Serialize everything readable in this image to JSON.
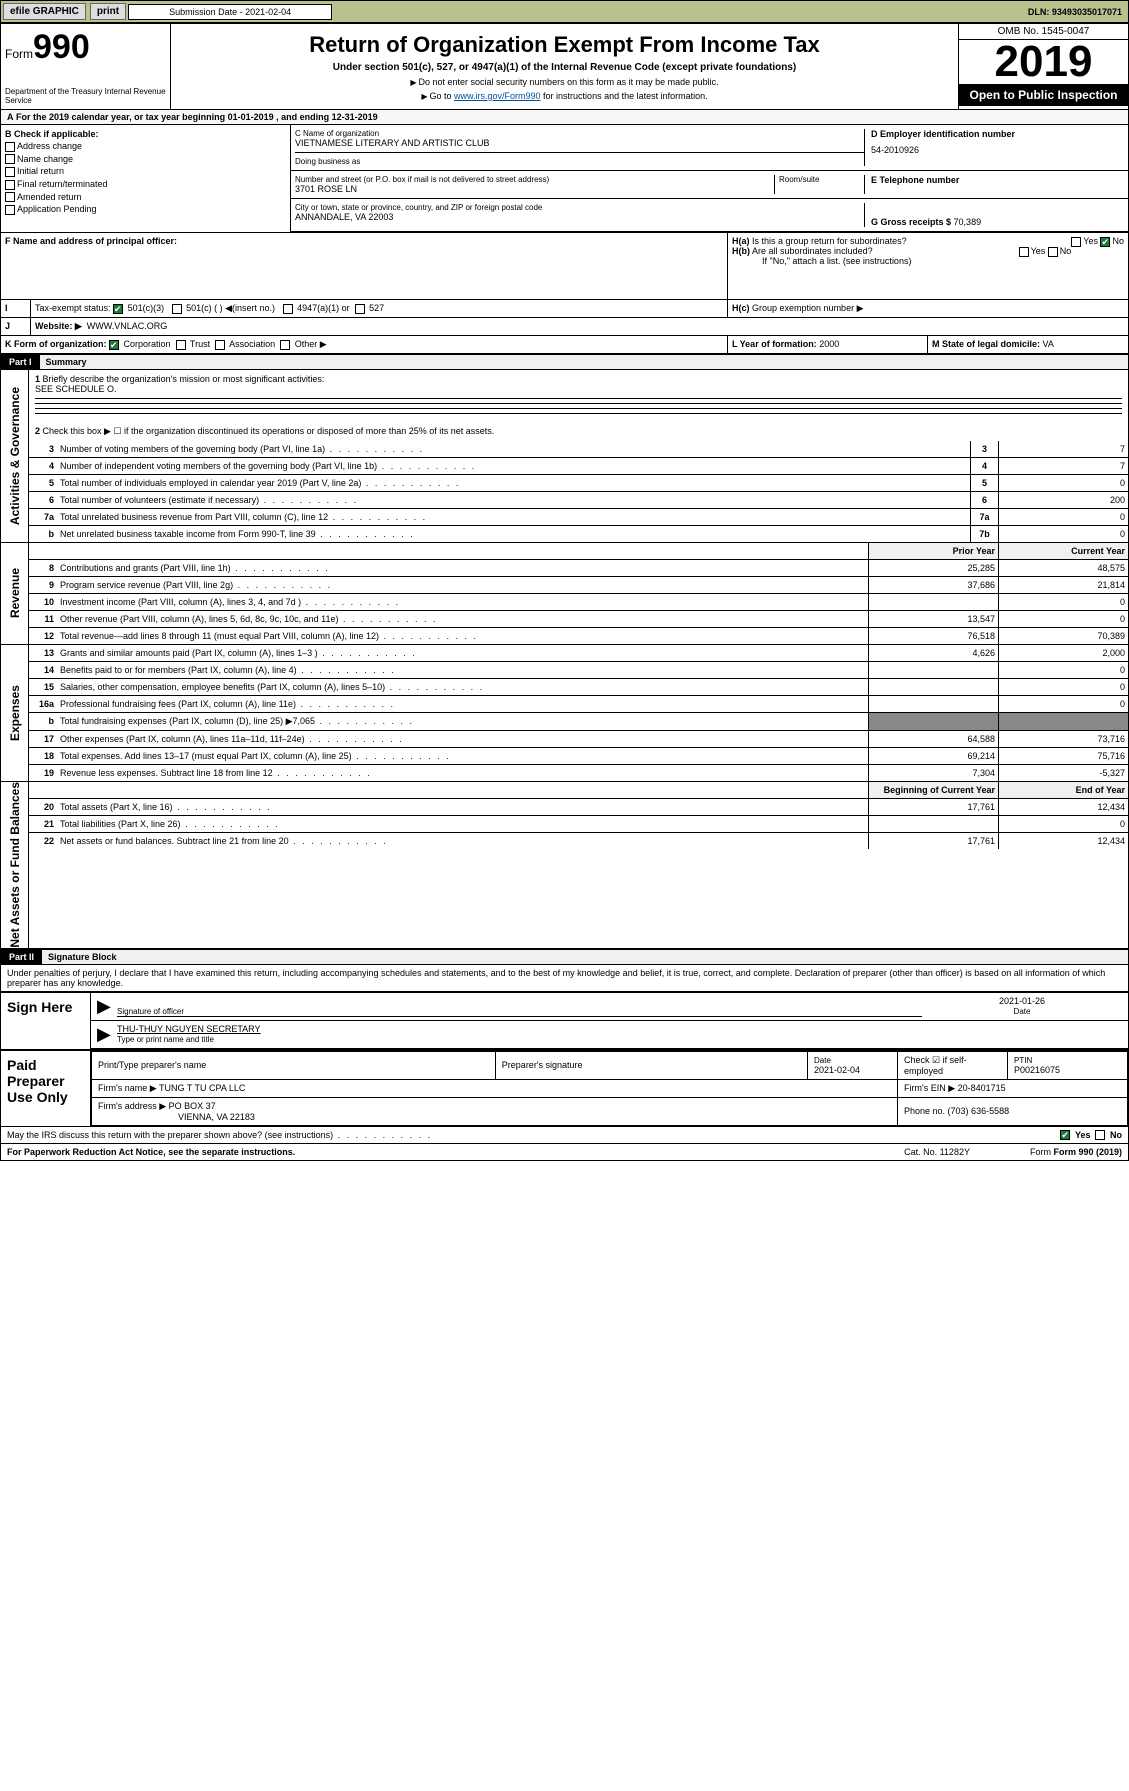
{
  "topbar": {
    "efile": "efile GRAPHIC",
    "print": "print",
    "sub_label": "Submission Date - 2021-02-04",
    "dln": "DLN: 93493035017071"
  },
  "header": {
    "form_prefix": "Form",
    "form_no": "990",
    "dept": "Department of the Treasury\nInternal Revenue Service",
    "title": "Return of Organization Exempt From Income Tax",
    "sub1": "Under section 501(c), 527, or 4947(a)(1) of the Internal Revenue Code (except private foundations)",
    "sub2": "Do not enter social security numbers on this form as it may be made public.",
    "sub3_pre": "Go to ",
    "sub3_link": "www.irs.gov/Form990",
    "sub3_post": " for instructions and the latest information.",
    "omb": "OMB No. 1545-0047",
    "year": "2019",
    "inspect": "Open to Public Inspection"
  },
  "line_a": "For the 2019 calendar year, or tax year beginning 01-01-2019  , and ending 12-31-2019",
  "boxB": {
    "label": "B Check if applicable:",
    "opts": [
      "Address change",
      "Name change",
      "Initial return",
      "Final return/terminated",
      "Amended return",
      "Application Pending"
    ]
  },
  "boxC": {
    "label": "C Name of organization",
    "val": "VIETNAMESE LITERARY AND ARTISTIC CLUB",
    "dba": "Doing business as"
  },
  "boxD": {
    "label": "D Employer identification number",
    "val": "54-2010926"
  },
  "addr": {
    "label": "Number and street (or P.O. box if mail is not delivered to street address)",
    "room": "Room/suite",
    "val": "3701 ROSE LN"
  },
  "city": {
    "label": "City or town, state or province, country, and ZIP or foreign postal code",
    "val": "ANNANDALE, VA  22003"
  },
  "boxE": {
    "label": "E Telephone number",
    "val": ""
  },
  "boxG": {
    "label": "G Gross receipts $ ",
    "val": "70,389"
  },
  "boxF": {
    "label": "F  Name and address of principal officer:"
  },
  "boxH": {
    "a": "Is this a group return for subordinates?",
    "b": "Are all subordinates included?",
    "b_note": "If \"No,\" attach a list. (see instructions)",
    "c": "Group exemption number ▶",
    "yes": "Yes",
    "no": "No"
  },
  "boxI": {
    "label": "Tax-exempt status:",
    "a": "501(c)(3)",
    "b": "501(c) (  ) ◀(insert no.)",
    "c": "4947(a)(1) or",
    "d": "527"
  },
  "boxJ": {
    "label": "Website: ▶",
    "val": "WWW.VNLAC.ORG"
  },
  "boxK": {
    "label": "K Form of organization:",
    "opts": [
      "Corporation",
      "Trust",
      "Association",
      "Other ▶"
    ]
  },
  "boxL": {
    "label": "L Year of formation: ",
    "val": "2000"
  },
  "boxM": {
    "label": "M State of legal domicile: ",
    "val": "VA"
  },
  "partI": {
    "num": "Part I",
    "title": "Summary"
  },
  "gov": {
    "label": "Activities & Governance",
    "l1": "Briefly describe the organization's mission or most significant activities:",
    "l1v": "SEE SCHEDULE O.",
    "l2": "Check this box ▶ ☐  if the organization discontinued its operations or disposed of more than 25% of its net assets.",
    "rows": [
      {
        "n": "3",
        "d": "Number of voting members of the governing body (Part VI, line 1a)",
        "b": "3",
        "v": "7"
      },
      {
        "n": "4",
        "d": "Number of independent voting members of the governing body (Part VI, line 1b)",
        "b": "4",
        "v": "7"
      },
      {
        "n": "5",
        "d": "Total number of individuals employed in calendar year 2019 (Part V, line 2a)",
        "b": "5",
        "v": "0"
      },
      {
        "n": "6",
        "d": "Total number of volunteers (estimate if necessary)",
        "b": "6",
        "v": "200"
      },
      {
        "n": "7a",
        "d": "Total unrelated business revenue from Part VIII, column (C), line 12",
        "b": "7a",
        "v": "0"
      },
      {
        "n": "b",
        "d": "Net unrelated business taxable income from Form 990-T, line 39",
        "b": "7b",
        "v": "0"
      }
    ]
  },
  "rev": {
    "label": "Revenue",
    "h1": "Prior Year",
    "h2": "Current Year",
    "rows": [
      {
        "n": "8",
        "d": "Contributions and grants (Part VIII, line 1h)",
        "p": "25,285",
        "c": "48,575"
      },
      {
        "n": "9",
        "d": "Program service revenue (Part VIII, line 2g)",
        "p": "37,686",
        "c": "21,814"
      },
      {
        "n": "10",
        "d": "Investment income (Part VIII, column (A), lines 3, 4, and 7d )",
        "p": "",
        "c": "0"
      },
      {
        "n": "11",
        "d": "Other revenue (Part VIII, column (A), lines 5, 6d, 8c, 9c, 10c, and 11e)",
        "p": "13,547",
        "c": "0"
      },
      {
        "n": "12",
        "d": "Total revenue—add lines 8 through 11 (must equal Part VIII, column (A), line 12)",
        "p": "76,518",
        "c": "70,389"
      }
    ]
  },
  "exp": {
    "label": "Expenses",
    "rows": [
      {
        "n": "13",
        "d": "Grants and similar amounts paid (Part IX, column (A), lines 1–3 )",
        "p": "4,626",
        "c": "2,000"
      },
      {
        "n": "14",
        "d": "Benefits paid to or for members (Part IX, column (A), line 4)",
        "p": "",
        "c": "0"
      },
      {
        "n": "15",
        "d": "Salaries, other compensation, employee benefits (Part IX, column (A), lines 5–10)",
        "p": "",
        "c": "0"
      },
      {
        "n": "16a",
        "d": "Professional fundraising fees (Part IX, column (A), line 11e)",
        "p": "",
        "c": "0"
      },
      {
        "n": "b",
        "d": "Total fundraising expenses (Part IX, column (D), line 25) ▶7,065",
        "p": "shade",
        "c": "shade"
      },
      {
        "n": "17",
        "d": "Other expenses (Part IX, column (A), lines 11a–11d, 11f–24e)",
        "p": "64,588",
        "c": "73,716"
      },
      {
        "n": "18",
        "d": "Total expenses. Add lines 13–17 (must equal Part IX, column (A), line 25)",
        "p": "69,214",
        "c": "75,716"
      },
      {
        "n": "19",
        "d": "Revenue less expenses. Subtract line 18 from line 12",
        "p": "7,304",
        "c": "-5,327"
      }
    ]
  },
  "net": {
    "label": "Net Assets or Fund Balances",
    "h1": "Beginning of Current Year",
    "h2": "End of Year",
    "rows": [
      {
        "n": "20",
        "d": "Total assets (Part X, line 16)",
        "p": "17,761",
        "c": "12,434"
      },
      {
        "n": "21",
        "d": "Total liabilities (Part X, line 26)",
        "p": "",
        "c": "0"
      },
      {
        "n": "22",
        "d": "Net assets or fund balances. Subtract line 21 from line 20",
        "p": "17,761",
        "c": "12,434"
      }
    ]
  },
  "partII": {
    "num": "Part II",
    "title": "Signature Block"
  },
  "jurat": "Under penalties of perjury, I declare that I have examined this return, including accompanying schedules and statements, and to the best of my knowledge and belief, it is true, correct, and complete. Declaration of preparer (other than officer) is based on all information of which preparer has any knowledge.",
  "sign": {
    "here": "Sign Here",
    "sig_of": "Signature of officer",
    "date": "2021-01-26",
    "date_l": "Date",
    "name": "THU-THUY NGUYEN  SECRETARY",
    "name_l": "Type or print name and title"
  },
  "paid": {
    "here": "Paid Preparer Use Only",
    "h": [
      "Print/Type preparer's name",
      "Preparer's signature",
      "Date",
      "",
      "PTIN"
    ],
    "date": "2021-02-04",
    "chk": "Check ☑ if self-employed",
    "ptin": "P00216075",
    "firm_l": "Firm's name    ▶ ",
    "firm": "TUNG T TU CPA LLC",
    "ein_l": "Firm's EIN ▶ ",
    "ein": "20-8401715",
    "addr_l": "Firm's address ▶ ",
    "addr": "PO BOX 37",
    "addr2": "VIENNA, VA  22183",
    "phone_l": "Phone no. ",
    "phone": "(703) 636-5588"
  },
  "discuss": "May the IRS discuss this return with the preparer shown above? (see instructions)",
  "footer": {
    "pra": "For Paperwork Reduction Act Notice, see the separate instructions.",
    "cat": "Cat. No. 11282Y",
    "form": "Form 990 (2019)"
  }
}
